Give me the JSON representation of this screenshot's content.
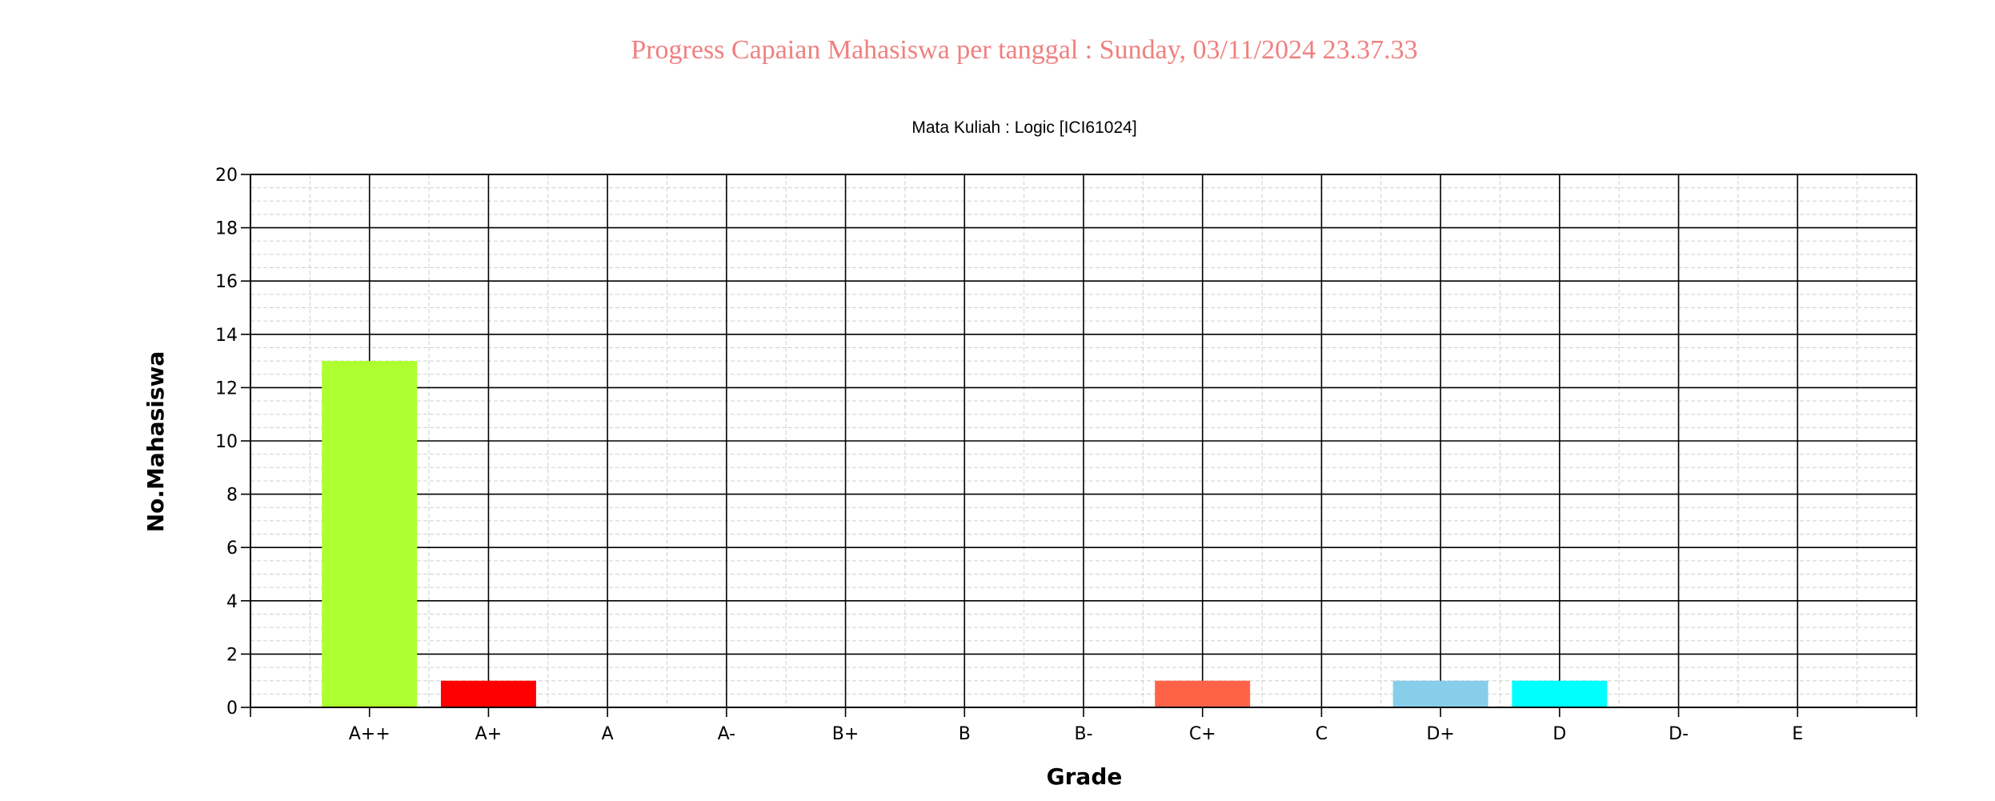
{
  "page": {
    "title": "Progress Capaian Mahasiswa per tanggal : Sunday, 03/11/2024 23.37.33"
  },
  "chart_data": {
    "type": "bar",
    "title": "Mata Kuliah : Logic [ICI61024]",
    "xlabel": "Grade",
    "ylabel": "No.Mahasiswa",
    "categories": [
      "A++",
      "A+",
      "A",
      "A-",
      "B+",
      "B",
      "B-",
      "C+",
      "C",
      "D+",
      "D",
      "D-",
      "E"
    ],
    "values": [
      13,
      1,
      0,
      0,
      0,
      0,
      0,
      1,
      0,
      1,
      1,
      0,
      0
    ],
    "colors": [
      "#adff2f",
      "#ff0000",
      "#000000",
      "#000000",
      "#000000",
      "#000000",
      "#000000",
      "#ff6347",
      "#000000",
      "#87ceeb",
      "#00ffff",
      "#000000",
      "#000000"
    ],
    "ylim": [
      0,
      20
    ],
    "yticks": [
      0,
      2,
      4,
      6,
      8,
      10,
      12,
      14,
      16,
      18,
      20
    ],
    "grid": true,
    "legend": "none"
  }
}
